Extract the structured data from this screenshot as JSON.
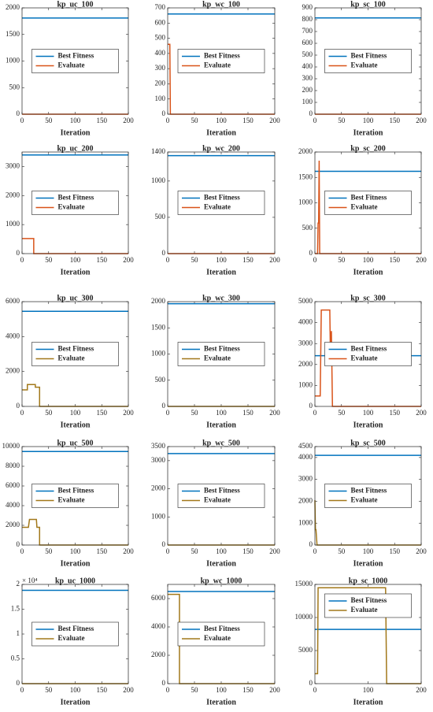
{
  "chart_data": [
    {
      "type": "line",
      "title": "kp_uc_100",
      "xlabel": "Iteration",
      "x": [
        0,
        200
      ],
      "series": [
        {
          "name": "Best Fitness",
          "color": "#0072bd",
          "values": [
            1810,
            1810
          ]
        },
        {
          "name": "Evaluate",
          "color": "#d95319",
          "values": [
            0,
            0
          ]
        }
      ],
      "xlim": [
        0,
        200
      ],
      "ylim": [
        0,
        2000
      ],
      "xticks": [
        0,
        50,
        100,
        150,
        200
      ],
      "yticks": [
        0,
        500,
        1000,
        1500,
        2000
      ],
      "legend": "center"
    },
    {
      "type": "line",
      "title": "kp_wc_100",
      "xlabel": "Iteration",
      "x": [
        0,
        4,
        5,
        200
      ],
      "series": [
        {
          "name": "Best Fitness",
          "color": "#0072bd",
          "values": [
            660,
            660,
            660,
            660
          ]
        },
        {
          "name": "Evaluate",
          "color": "#d95319",
          "values": [
            460,
            460,
            0,
            0
          ]
        }
      ],
      "xlim": [
        0,
        200
      ],
      "ylim": [
        0,
        700
      ],
      "xticks": [
        0,
        50,
        100,
        150,
        200
      ],
      "yticks": [
        0,
        100,
        200,
        300,
        400,
        500,
        600,
        700
      ],
      "legend": "center"
    },
    {
      "type": "line",
      "title": "kp_sc_100",
      "xlabel": "Iteration",
      "x": [
        0,
        200
      ],
      "series": [
        {
          "name": "Best Fitness",
          "color": "#0072bd",
          "values": [
            815,
            815
          ]
        },
        {
          "name": "Evaluate",
          "color": "#d95319",
          "values": [
            0,
            0
          ]
        }
      ],
      "xlim": [
        0,
        200
      ],
      "ylim": [
        0,
        900
      ],
      "xticks": [
        0,
        50,
        100,
        150,
        200
      ],
      "yticks": [
        0,
        100,
        200,
        300,
        400,
        500,
        600,
        700,
        800,
        900
      ],
      "legend": "center"
    },
    {
      "type": "line",
      "title": "kp_uc_200",
      "xlabel": "Iteration",
      "x": [
        0,
        22,
        22,
        200
      ],
      "series": [
        {
          "name": "Best Fitness",
          "color": "#0072bd",
          "values": [
            3400,
            3400,
            3400,
            3400
          ]
        },
        {
          "name": "Evaluate",
          "color": "#d95319",
          "values": [
            520,
            520,
            0,
            0
          ]
        }
      ],
      "xlim": [
        0,
        200
      ],
      "ylim": [
        0,
        3500
      ],
      "xticks": [
        0,
        50,
        100,
        150,
        200
      ],
      "yticks": [
        0,
        1000,
        2000,
        3000
      ],
      "legend": "center"
    },
    {
      "type": "line",
      "title": "kp_wc_200",
      "xlabel": "Iteration",
      "x": [
        0,
        200
      ],
      "series": [
        {
          "name": "Best Fitness",
          "color": "#0072bd",
          "values": [
            1350,
            1350
          ]
        },
        {
          "name": "Evaluate",
          "color": "#d95319",
          "values": [
            0,
            0
          ]
        }
      ],
      "xlim": [
        0,
        200
      ],
      "ylim": [
        0,
        1400
      ],
      "xticks": [
        0,
        50,
        100,
        150,
        200
      ],
      "yticks": [
        0,
        500,
        1000,
        1400
      ],
      "legend": "center"
    },
    {
      "type": "line",
      "title": "kp_sc_200",
      "xlabel": "Iteration",
      "x": [
        0,
        5,
        6,
        7,
        8,
        9,
        200
      ],
      "series": [
        {
          "name": "Best Fitness",
          "color": "#0072bd",
          "values": [
            1620,
            1620,
            1620,
            1620,
            1620,
            1620,
            1620
          ]
        },
        {
          "name": "Evaluate",
          "color": "#d95319",
          "values": [
            0,
            0,
            600,
            600,
            1830,
            0,
            0
          ]
        }
      ],
      "xlim": [
        0,
        200
      ],
      "ylim": [
        0,
        2000
      ],
      "xticks": [
        0,
        50,
        100,
        150,
        200
      ],
      "yticks": [
        0,
        500,
        1000,
        1500,
        2000
      ],
      "legend": "center"
    },
    {
      "type": "line",
      "title": "kp_uc_300",
      "xlabel": "Iteration",
      "x": [
        0,
        10,
        10,
        25,
        25,
        33,
        33,
        200
      ],
      "series": [
        {
          "name": "Best Fitness",
          "color": "#0072bd",
          "values": [
            5450,
            5450,
            5450,
            5450,
            5450,
            5450,
            5450,
            5450
          ]
        },
        {
          "name": "Evaluate",
          "color": "#a2781a",
          "values": [
            950,
            950,
            1250,
            1250,
            1100,
            1100,
            0,
            0
          ]
        }
      ],
      "xlim": [
        0,
        200
      ],
      "ylim": [
        0,
        6000
      ],
      "xticks": [
        0,
        50,
        100,
        150,
        200
      ],
      "yticks": [
        0,
        2000,
        4000,
        6000
      ],
      "legend": "center"
    },
    {
      "type": "line",
      "title": "kp_wc_300",
      "xlabel": "Iteration",
      "x": [
        0,
        200
      ],
      "series": [
        {
          "name": "Best Fitness",
          "color": "#0072bd",
          "values": [
            1960,
            1960
          ]
        },
        {
          "name": "Evaluate",
          "color": "#a2781a",
          "values": [
            0,
            0
          ]
        }
      ],
      "xlim": [
        0,
        200
      ],
      "ylim": [
        0,
        2000
      ],
      "xticks": [
        0,
        50,
        100,
        150,
        200
      ],
      "yticks": [
        0,
        500,
        1000,
        1500,
        2000
      ],
      "legend": "center"
    },
    {
      "type": "line",
      "title": "kp_sc_300",
      "xlabel": "Iteration",
      "x": [
        0,
        10,
        12,
        28,
        29,
        31,
        33,
        200
      ],
      "series": [
        {
          "name": "Best Fitness",
          "color": "#0072bd",
          "values": [
            2420,
            2420,
            2420,
            2420,
            2420,
            2420,
            2420,
            2420
          ]
        },
        {
          "name": "Evaluate",
          "color": "#d95319",
          "values": [
            500,
            500,
            4600,
            4600,
            2800,
            3600,
            0,
            0
          ]
        }
      ],
      "xlim": [
        0,
        200
      ],
      "ylim": [
        0,
        5000
      ],
      "xticks": [
        0,
        50,
        100,
        150,
        200
      ],
      "yticks": [
        0,
        1000,
        2000,
        3000,
        4000,
        5000
      ],
      "legend": "center"
    },
    {
      "type": "line",
      "title": "kp_uc_500",
      "xlabel": "Iteration",
      "x": [
        0,
        12,
        14,
        27,
        28,
        33,
        33,
        200
      ],
      "series": [
        {
          "name": "Best Fitness",
          "color": "#0072bd",
          "values": [
            9500,
            9500,
            9500,
            9500,
            9500,
            9500,
            9500,
            9500
          ]
        },
        {
          "name": "Evaluate",
          "color": "#a2781a",
          "values": [
            1800,
            1800,
            2600,
            2600,
            1800,
            1800,
            0,
            0
          ]
        }
      ],
      "xlim": [
        0,
        200
      ],
      "ylim": [
        0,
        10000
      ],
      "xticks": [
        0,
        50,
        100,
        150,
        200
      ],
      "yticks": [
        0,
        2000,
        4000,
        6000,
        8000,
        10000
      ],
      "legend": "center"
    },
    {
      "type": "line",
      "title": "kp_wc_500",
      "xlabel": "Iteration",
      "x": [
        0,
        200
      ],
      "series": [
        {
          "name": "Best Fitness",
          "color": "#0072bd",
          "values": [
            3250,
            3250
          ]
        },
        {
          "name": "Evaluate",
          "color": "#a2781a",
          "values": [
            0,
            0
          ]
        }
      ],
      "xlim": [
        0,
        200
      ],
      "ylim": [
        0,
        3500
      ],
      "xticks": [
        0,
        50,
        100,
        150,
        200
      ],
      "yticks": [
        0,
        1000,
        2000,
        3000,
        3500
      ],
      "legend": "center"
    },
    {
      "type": "line",
      "title": "kp_sc_500",
      "xlabel": "Iteration",
      "x": [
        0,
        1,
        2,
        4,
        200
      ],
      "series": [
        {
          "name": "Best Fitness",
          "color": "#0072bd",
          "values": [
            4100,
            4100,
            4100,
            4100,
            4100
          ]
        },
        {
          "name": "Evaluate",
          "color": "#a2781a",
          "values": [
            2050,
            700,
            700,
            0,
            0
          ]
        }
      ],
      "xlim": [
        0,
        200
      ],
      "ylim": [
        0,
        4500
      ],
      "xticks": [
        0,
        50,
        100,
        150,
        200
      ],
      "yticks": [
        0,
        1000,
        2000,
        3000,
        4000,
        4500
      ],
      "legend": "center"
    },
    {
      "type": "line",
      "title": "kp_uc_1000",
      "xlabel": "Iteration",
      "y_exponent": "× 10⁴",
      "x": [
        0,
        200
      ],
      "series": [
        {
          "name": "Best Fitness",
          "color": "#0072bd",
          "values": [
            18800,
            18800
          ]
        },
        {
          "name": "Evaluate",
          "color": "#a2781a",
          "values": [
            0,
            0
          ]
        }
      ],
      "xlim": [
        0,
        200
      ],
      "ylim": [
        0,
        20000
      ],
      "xticks": [
        0,
        50,
        100,
        150,
        200
      ],
      "yticks": [
        0,
        {
          "value": 5000,
          "label": "0.5"
        },
        {
          "value": 10000,
          "label": "1"
        },
        {
          "value": 15000,
          "label": "1.5"
        },
        {
          "value": 20000,
          "label": "2"
        }
      ],
      "legend": "center"
    },
    {
      "type": "line",
      "title": "kp_wc_1000",
      "xlabel": "Iteration",
      "x": [
        0,
        22,
        22,
        200
      ],
      "series": [
        {
          "name": "Best Fitness",
          "color": "#0072bd",
          "values": [
            6500,
            6500,
            6500,
            6500
          ]
        },
        {
          "name": "Evaluate",
          "color": "#a2781a",
          "values": [
            6300,
            6300,
            0,
            0
          ]
        }
      ],
      "xlim": [
        0,
        200
      ],
      "ylim": [
        0,
        7000
      ],
      "xticks": [
        0,
        50,
        100,
        150,
        200
      ],
      "yticks": [
        0,
        2000,
        4000,
        6000
      ],
      "legend": "center"
    },
    {
      "type": "line",
      "title": "kp_sc_1000",
      "xlabel": "Iteration",
      "x": [
        0,
        5,
        6,
        133,
        135,
        200
      ],
      "series": [
        {
          "name": "Best Fitness",
          "color": "#0072bd",
          "values": [
            8200,
            8200,
            8200,
            8200,
            8200,
            8200
          ]
        },
        {
          "name": "Evaluate",
          "color": "#a2781a",
          "values": [
            1500,
            1500,
            14500,
            14500,
            0,
            0
          ]
        }
      ],
      "xlim": [
        0,
        200
      ],
      "ylim": [
        0,
        15000
      ],
      "xticks": [
        0,
        100,
        200
      ],
      "yticks": [
        0,
        5000,
        10000,
        15000
      ],
      "legend": "north"
    }
  ]
}
